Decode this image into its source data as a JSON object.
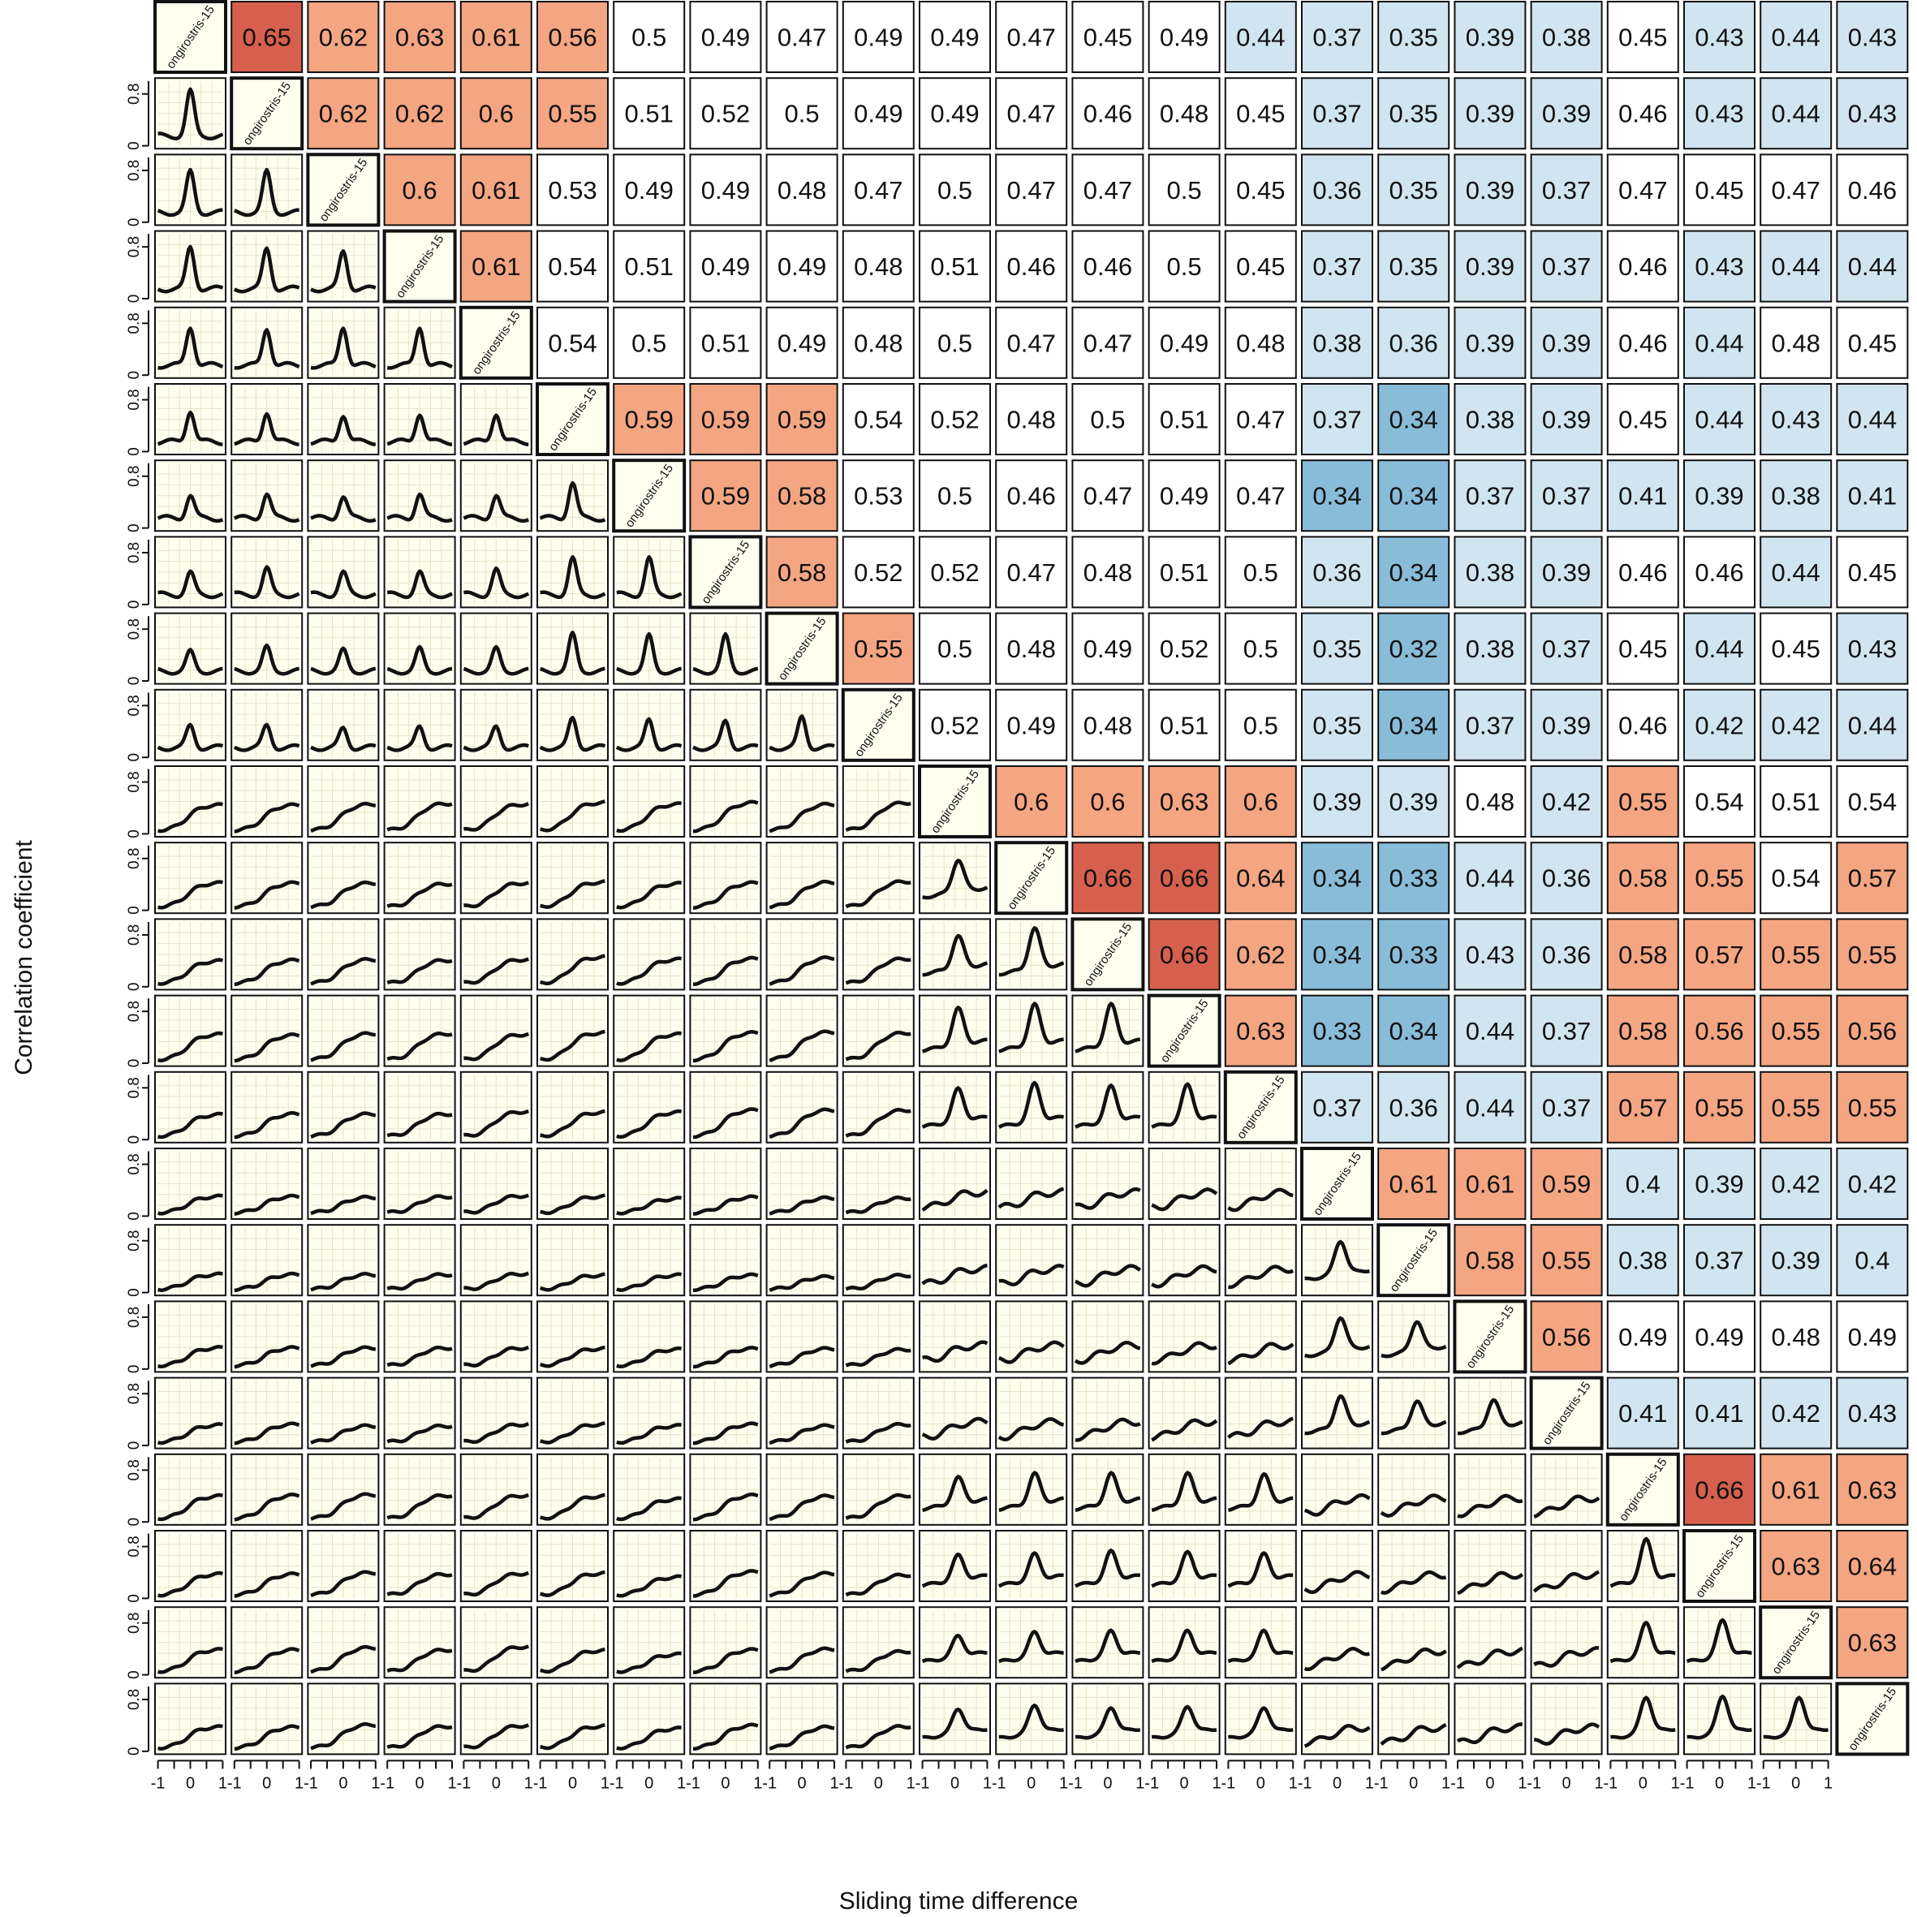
{
  "chart_data": {
    "type": "correlogram-matrix",
    "xlabel": "Sliding time difference",
    "ylabel": "Correlation coefficient",
    "diagonal_label": "ongirostris-15",
    "mini_plot": {
      "x_ticks": [
        -1,
        0,
        1
      ],
      "y_ticks": [
        0,
        0.8
      ],
      "x_range": [
        -1,
        1
      ],
      "y_range": [
        0,
        1
      ]
    },
    "colors": {
      "cell_low": "#89bcd9",
      "cell_midlow": "#d1e5f0",
      "cell_neutral": "#ffffff",
      "cell_midhigh": "#f4a582",
      "cell_high": "#d6604d",
      "diag_fill": "#fffff0",
      "plot_bg": "#fffff0",
      "plot_grid": "#e4e2c8"
    },
    "values": [
      [
        null,
        0.65,
        0.62,
        0.63,
        0.61,
        0.56,
        0.5,
        0.49,
        0.47,
        0.49,
        0.49,
        0.47,
        0.45,
        0.49,
        0.44,
        0.37,
        0.35,
        0.39,
        0.38,
        0.45,
        0.43,
        0.44,
        0.43
      ],
      [
        0.65,
        null,
        0.62,
        0.62,
        0.6,
        0.55,
        0.51,
        0.52,
        0.5,
        0.49,
        0.49,
        0.47,
        0.46,
        0.48,
        0.45,
        0.37,
        0.35,
        0.39,
        0.39,
        0.46,
        0.43,
        0.44,
        0.43
      ],
      [
        0.62,
        0.62,
        null,
        0.6,
        0.61,
        0.53,
        0.49,
        0.49,
        0.48,
        0.47,
        0.5,
        0.47,
        0.47,
        0.5,
        0.45,
        0.36,
        0.35,
        0.39,
        0.37,
        0.47,
        0.45,
        0.47,
        0.46
      ],
      [
        0.63,
        0.62,
        0.6,
        null,
        0.61,
        0.54,
        0.51,
        0.49,
        0.49,
        0.48,
        0.51,
        0.46,
        0.46,
        0.5,
        0.45,
        0.37,
        0.35,
        0.39,
        0.37,
        0.46,
        0.43,
        0.44,
        0.44
      ],
      [
        0.61,
        0.6,
        0.61,
        0.61,
        null,
        0.54,
        0.5,
        0.51,
        0.49,
        0.48,
        0.5,
        0.47,
        0.47,
        0.49,
        0.48,
        0.38,
        0.36,
        0.39,
        0.39,
        0.46,
        0.44,
        0.48,
        0.45
      ],
      [
        0.56,
        0.55,
        0.53,
        0.54,
        0.54,
        null,
        0.59,
        0.59,
        0.59,
        0.54,
        0.52,
        0.48,
        0.5,
        0.51,
        0.47,
        0.37,
        0.34,
        0.38,
        0.39,
        0.45,
        0.44,
        0.43,
        0.44
      ],
      [
        0.5,
        0.51,
        0.49,
        0.51,
        0.5,
        0.59,
        null,
        0.59,
        0.58,
        0.53,
        0.5,
        0.46,
        0.47,
        0.49,
        0.47,
        0.34,
        0.34,
        0.37,
        0.37,
        0.41,
        0.39,
        0.38,
        0.41
      ],
      [
        0.49,
        0.52,
        0.49,
        0.49,
        0.51,
        0.59,
        0.59,
        null,
        0.58,
        0.52,
        0.52,
        0.47,
        0.48,
        0.51,
        0.5,
        0.36,
        0.34,
        0.38,
        0.39,
        0.46,
        0.46,
        0.44,
        0.45
      ],
      [
        0.47,
        0.5,
        0.48,
        0.49,
        0.49,
        0.59,
        0.58,
        0.58,
        null,
        0.55,
        0.5,
        0.48,
        0.49,
        0.52,
        0.5,
        0.35,
        0.32,
        0.38,
        0.37,
        0.45,
        0.44,
        0.45,
        0.43
      ],
      [
        0.49,
        0.49,
        0.47,
        0.48,
        0.48,
        0.54,
        0.53,
        0.52,
        0.55,
        null,
        0.52,
        0.49,
        0.48,
        0.51,
        0.5,
        0.35,
        0.34,
        0.37,
        0.39,
        0.46,
        0.42,
        0.42,
        0.44
      ],
      [
        0.49,
        0.49,
        0.5,
        0.51,
        0.5,
        0.52,
        0.5,
        0.52,
        0.5,
        0.52,
        null,
        0.6,
        0.6,
        0.63,
        0.6,
        0.39,
        0.39,
        0.48,
        0.42,
        0.55,
        0.54,
        0.51,
        0.54
      ],
      [
        0.47,
        0.47,
        0.47,
        0.46,
        0.47,
        0.48,
        0.46,
        0.47,
        0.48,
        0.49,
        0.6,
        null,
        0.66,
        0.66,
        0.64,
        0.34,
        0.33,
        0.44,
        0.36,
        0.58,
        0.55,
        0.54,
        0.57
      ],
      [
        0.45,
        0.46,
        0.47,
        0.46,
        0.47,
        0.5,
        0.47,
        0.48,
        0.49,
        0.48,
        0.6,
        0.66,
        null,
        0.66,
        0.62,
        0.34,
        0.33,
        0.43,
        0.36,
        0.58,
        0.57,
        0.55,
        0.55
      ],
      [
        0.49,
        0.48,
        0.5,
        0.5,
        0.49,
        0.51,
        0.49,
        0.51,
        0.52,
        0.51,
        0.63,
        0.66,
        0.66,
        null,
        0.63,
        0.33,
        0.34,
        0.44,
        0.37,
        0.58,
        0.56,
        0.55,
        0.56
      ],
      [
        0.44,
        0.45,
        0.45,
        0.45,
        0.48,
        0.47,
        0.47,
        0.5,
        0.5,
        0.5,
        0.6,
        0.64,
        0.62,
        0.63,
        null,
        0.37,
        0.36,
        0.44,
        0.37,
        0.57,
        0.55,
        0.55,
        0.55
      ],
      [
        0.37,
        0.37,
        0.36,
        0.37,
        0.38,
        0.37,
        0.34,
        0.36,
        0.35,
        0.35,
        0.39,
        0.34,
        0.34,
        0.33,
        0.37,
        null,
        0.61,
        0.61,
        0.59,
        0.4,
        0.39,
        0.42,
        0.42
      ],
      [
        0.35,
        0.35,
        0.35,
        0.35,
        0.36,
        0.34,
        0.34,
        0.34,
        0.32,
        0.34,
        0.39,
        0.33,
        0.33,
        0.34,
        0.36,
        0.61,
        null,
        0.58,
        0.55,
        0.38,
        0.37,
        0.39,
        0.4
      ],
      [
        0.39,
        0.39,
        0.39,
        0.39,
        0.39,
        0.38,
        0.37,
        0.38,
        0.38,
        0.37,
        0.48,
        0.44,
        0.43,
        0.44,
        0.44,
        0.61,
        0.58,
        null,
        0.56,
        0.49,
        0.49,
        0.48,
        0.49
      ],
      [
        0.38,
        0.39,
        0.37,
        0.37,
        0.39,
        0.39,
        0.37,
        0.39,
        0.37,
        0.39,
        0.42,
        0.36,
        0.36,
        0.37,
        0.37,
        0.59,
        0.55,
        0.56,
        null,
        0.41,
        0.41,
        0.42,
        0.43
      ],
      [
        0.45,
        0.46,
        0.47,
        0.46,
        0.46,
        0.45,
        0.41,
        0.46,
        0.45,
        0.46,
        0.55,
        0.58,
        0.58,
        0.58,
        0.57,
        0.4,
        0.38,
        0.49,
        0.41,
        null,
        0.66,
        0.61,
        0.63
      ],
      [
        0.43,
        0.43,
        0.45,
        0.43,
        0.44,
        0.44,
        0.39,
        0.46,
        0.44,
        0.42,
        0.54,
        0.55,
        0.57,
        0.56,
        0.55,
        0.39,
        0.37,
        0.49,
        0.41,
        0.66,
        null,
        0.63,
        0.64
      ],
      [
        0.44,
        0.44,
        0.47,
        0.44,
        0.48,
        0.43,
        0.38,
        0.44,
        0.45,
        0.42,
        0.51,
        0.54,
        0.55,
        0.55,
        0.55,
        0.42,
        0.39,
        0.48,
        0.42,
        0.61,
        0.63,
        null,
        0.63
      ],
      [
        0.43,
        0.43,
        0.46,
        0.44,
        0.45,
        0.44,
        0.41,
        0.45,
        0.43,
        0.44,
        0.54,
        0.57,
        0.55,
        0.56,
        0.55,
        0.42,
        0.4,
        0.49,
        0.43,
        0.63,
        0.64,
        0.63,
        null
      ]
    ],
    "groups": [
      0,
      0,
      0,
      0,
      0,
      1,
      1,
      1,
      1,
      1,
      2,
      2,
      2,
      2,
      2,
      3,
      3,
      3,
      3,
      4,
      4,
      4,
      4
    ]
  }
}
